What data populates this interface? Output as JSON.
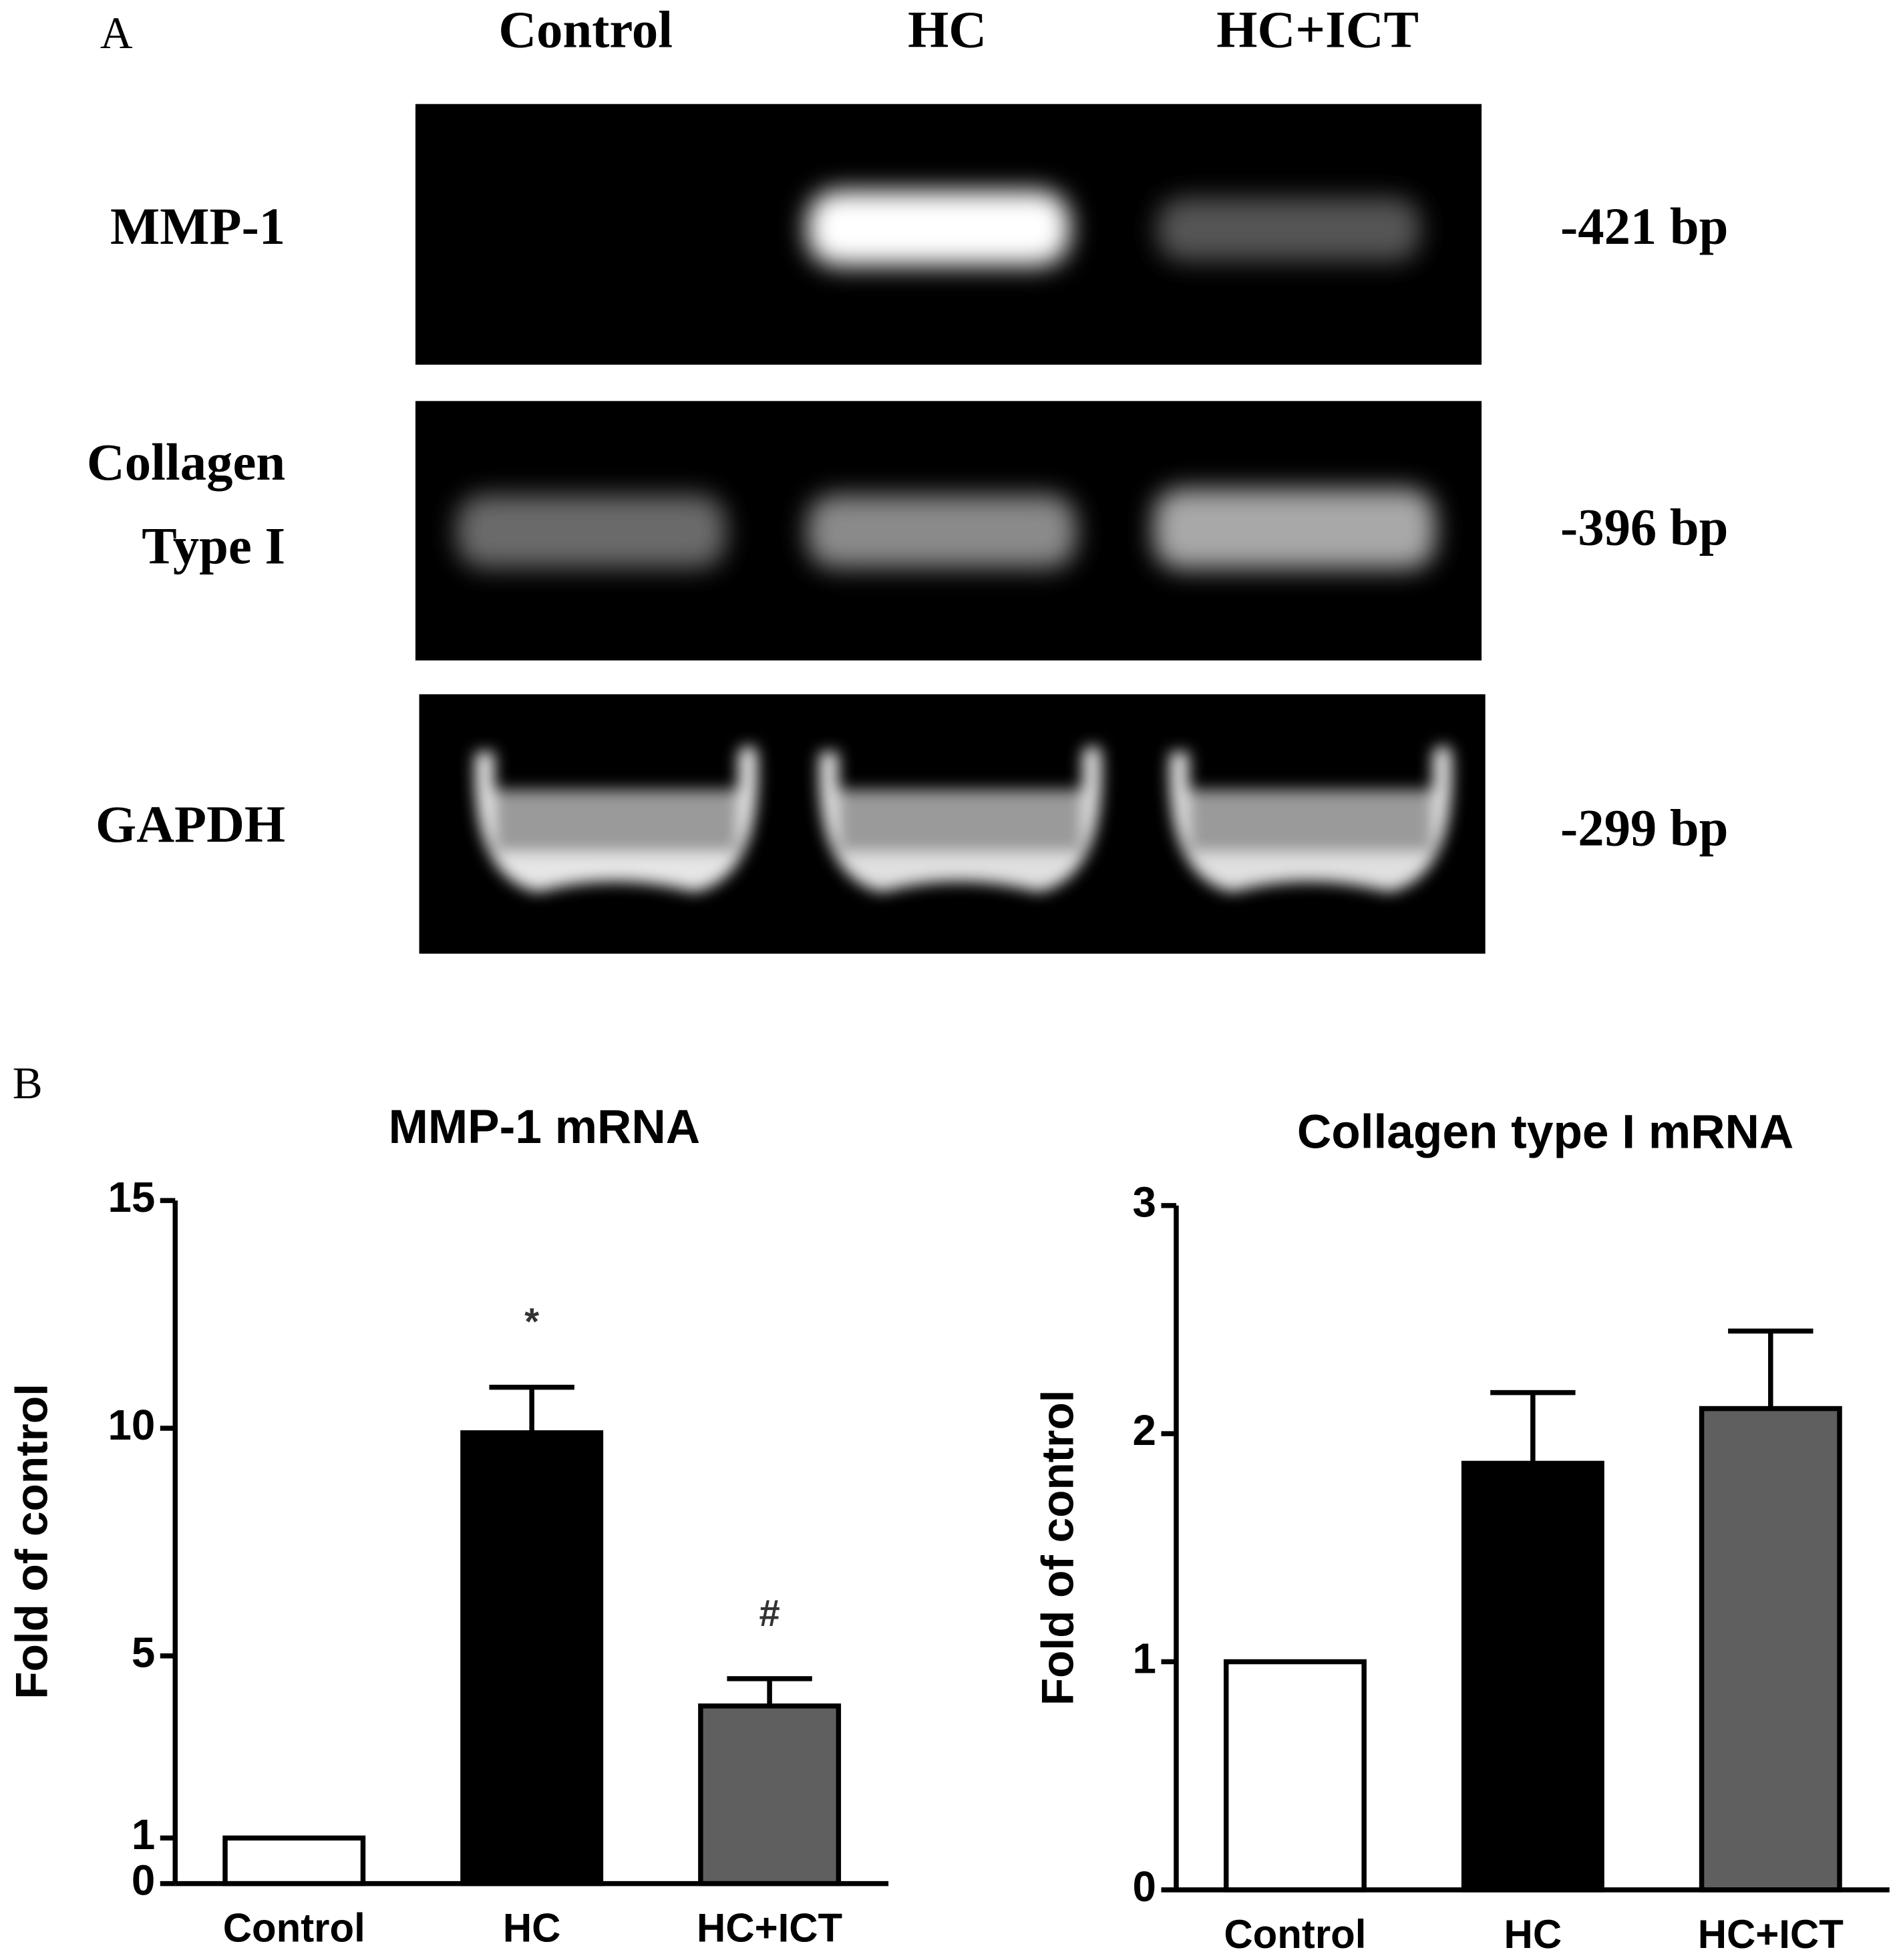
{
  "panel_a": {
    "label": "A",
    "lanes": [
      "Control",
      "HC",
      "HC+ICT"
    ],
    "rows": [
      {
        "label": [
          "MMP-1"
        ],
        "size": "-421 bp"
      },
      {
        "label": [
          "Collagen",
          "Type I"
        ],
        "size": "-396 bp"
      },
      {
        "label": [
          "GAPDH"
        ],
        "size": "-299 bp"
      }
    ]
  },
  "panel_b_label": "B",
  "chart_data": [
    {
      "type": "bar",
      "title": "MMP-1 mRNA",
      "ylabel": "Fold of control",
      "categories": [
        "Control",
        "HC",
        "HC+ICT"
      ],
      "values": [
        1,
        9.9,
        3.9
      ],
      "errors": [
        null,
        1.0,
        0.6
      ],
      "annotations": [
        null,
        "*",
        "#"
      ],
      "colors": [
        "#ffffff",
        "#000000",
        "#5f5f5f"
      ],
      "ylim": [
        0,
        15
      ],
      "yticks": [
        0,
        1,
        5,
        10,
        15
      ]
    },
    {
      "type": "bar",
      "title": "Collagen type I mRNA",
      "ylabel": "Fold of control",
      "categories": [
        "Control",
        "HC",
        "HC+ICT"
      ],
      "values": [
        1,
        1.87,
        2.11
      ],
      "errors": [
        null,
        0.31,
        0.34
      ],
      "annotations": [
        null,
        null,
        null
      ],
      "colors": [
        "#ffffff",
        "#000000",
        "#5f5f5f"
      ],
      "ylim": [
        0,
        3
      ],
      "yticks": [
        0,
        1,
        2,
        3
      ]
    }
  ]
}
